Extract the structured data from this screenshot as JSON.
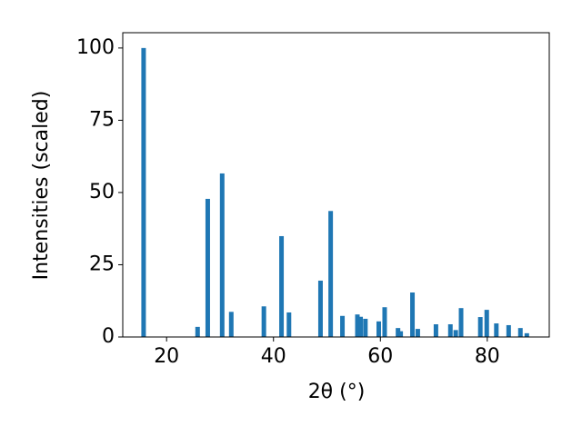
{
  "chart_data": {
    "type": "bar",
    "xlabel": "2θ (°)",
    "ylabel": "Intensities (scaled)",
    "x": [
      15.7,
      25.8,
      27.7,
      30.4,
      32.1,
      38.2,
      41.5,
      42.9,
      48.8,
      50.7,
      52.9,
      55.7,
      56.3,
      57.2,
      59.7,
      60.8,
      63.3,
      63.8,
      66.0,
      67.0,
      70.4,
      73.1,
      74.1,
      75.1,
      78.7,
      79.9,
      81.7,
      84.0,
      86.2,
      87.4
    ],
    "values": [
      100,
      3.5,
      47.8,
      56.6,
      8.7,
      10.6,
      34.9,
      8.5,
      19.5,
      43.6,
      7.3,
      7.8,
      7.0,
      6.3,
      5.4,
      10.3,
      3.1,
      2.0,
      15.4,
      2.8,
      4.4,
      4.4,
      2.4,
      10.0,
      6.9,
      9.4,
      4.7,
      4.1,
      3.1,
      1.3
    ],
    "color": "#1f77b4",
    "xlim": [
      11.8,
      91.6
    ],
    "ylim": [
      0,
      105.3
    ],
    "xticks": [
      20,
      40,
      60,
      80
    ],
    "yticks": [
      0,
      25,
      50,
      75,
      100
    ],
    "grid": false
  }
}
